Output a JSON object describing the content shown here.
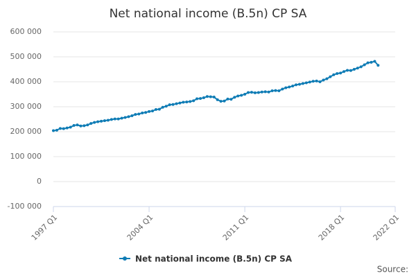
{
  "chart_data": {
    "type": "line",
    "title": "Net national income (B.5n) CP SA",
    "categories": [
      "1997 Q1",
      "1997 Q2",
      "1997 Q3",
      "1997 Q4",
      "1998 Q1",
      "1998 Q2",
      "1998 Q3",
      "1998 Q4",
      "1999 Q1",
      "1999 Q2",
      "1999 Q3",
      "1999 Q4",
      "2000 Q1",
      "2000 Q2",
      "2000 Q3",
      "2000 Q4",
      "2001 Q1",
      "2001 Q2",
      "2001 Q3",
      "2001 Q4",
      "2002 Q1",
      "2002 Q2",
      "2002 Q3",
      "2002 Q4",
      "2003 Q1",
      "2003 Q2",
      "2003 Q3",
      "2003 Q4",
      "2004 Q1",
      "2004 Q2",
      "2004 Q3",
      "2004 Q4",
      "2005 Q1",
      "2005 Q2",
      "2005 Q3",
      "2005 Q4",
      "2006 Q1",
      "2006 Q2",
      "2006 Q3",
      "2006 Q4",
      "2007 Q1",
      "2007 Q2",
      "2007 Q3",
      "2007 Q4",
      "2008 Q1",
      "2008 Q2",
      "2008 Q3",
      "2008 Q4",
      "2009 Q1",
      "2009 Q2",
      "2009 Q3",
      "2009 Q4",
      "2010 Q1",
      "2010 Q2",
      "2010 Q3",
      "2010 Q4",
      "2011 Q1",
      "2011 Q2",
      "2011 Q3",
      "2011 Q4",
      "2012 Q1",
      "2012 Q2",
      "2012 Q3",
      "2012 Q4",
      "2013 Q1",
      "2013 Q2",
      "2013 Q3",
      "2013 Q4",
      "2014 Q1",
      "2014 Q2",
      "2014 Q3",
      "2014 Q4",
      "2015 Q1",
      "2015 Q2",
      "2015 Q3",
      "2015 Q4",
      "2016 Q1",
      "2016 Q2",
      "2016 Q3",
      "2016 Q4",
      "2017 Q1",
      "2017 Q2",
      "2017 Q3",
      "2017 Q4",
      "2018 Q1",
      "2018 Q2",
      "2018 Q3",
      "2018 Q4",
      "2019 Q1",
      "2019 Q2",
      "2019 Q3",
      "2019 Q4",
      "2020 Q1",
      "2020 Q2",
      "2020 Q3",
      "2020 Q4"
    ],
    "series": [
      {
        "name": "Net national income (B.5n) CP SA",
        "color": "#0f7cb5",
        "values": [
          204000,
          206000,
          213000,
          212000,
          215000,
          218000,
          225000,
          227000,
          223000,
          224000,
          227000,
          233000,
          237000,
          240000,
          242000,
          244000,
          246000,
          249000,
          251000,
          251000,
          254000,
          257000,
          260000,
          264000,
          269000,
          271000,
          275000,
          277000,
          281000,
          283000,
          289000,
          290000,
          298000,
          302000,
          308000,
          309000,
          312000,
          315000,
          318000,
          319000,
          321000,
          324000,
          332000,
          333000,
          336000,
          341000,
          340000,
          339000,
          328000,
          322000,
          323000,
          331000,
          330000,
          338000,
          343000,
          346000,
          350000,
          357000,
          358000,
          356000,
          357000,
          359000,
          360000,
          359000,
          364000,
          365000,
          364000,
          371000,
          376000,
          379000,
          383000,
          388000,
          390000,
          393000,
          396000,
          399000,
          402000,
          403000,
          400000,
          407000,
          412000,
          420000,
          428000,
          433000,
          435000,
          441000,
          446000,
          445000,
          450000,
          455000,
          460000,
          468000,
          476000,
          478000,
          482000,
          466000
        ]
      }
    ],
    "xticks": [
      "1997 Q1",
      "2004 Q1",
      "2011 Q1",
      "2018 Q1",
      "2022 Q1"
    ],
    "ylim": [
      -100000,
      600000
    ],
    "yticks": [
      {
        "value": -100000,
        "label": "-100 000"
      },
      0,
      {
        "value": 100000,
        "label": "100 000"
      },
      {
        "value": 200000,
        "label": "200 000"
      },
      {
        "value": 300000,
        "label": "300 000"
      },
      {
        "value": 400000,
        "label": "400 000"
      },
      {
        "value": 500000,
        "label": "500 000"
      },
      {
        "value": 600000,
        "label": "600 000"
      }
    ],
    "grid": true,
    "legend": "bottom",
    "source_label": "Source:"
  }
}
